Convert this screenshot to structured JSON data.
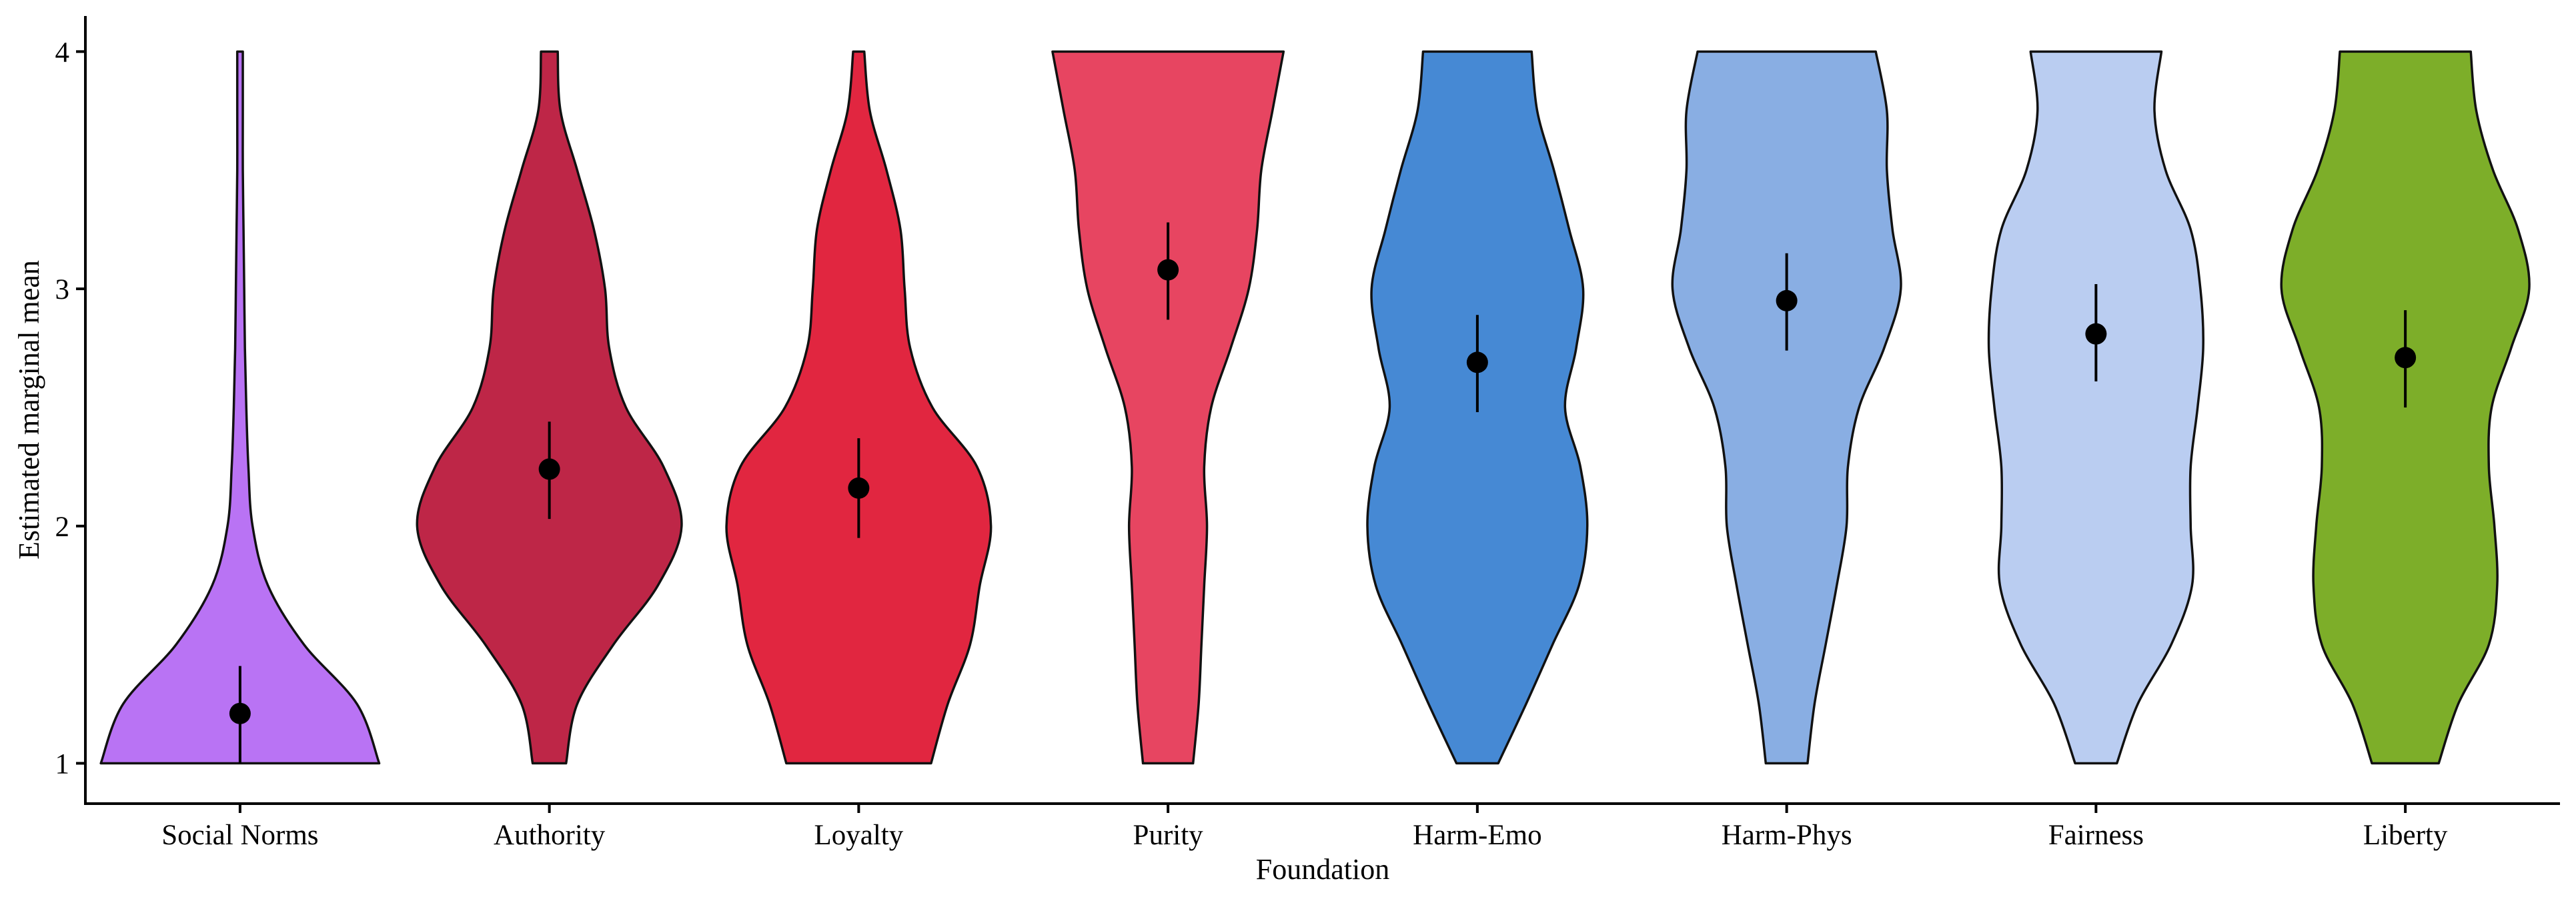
{
  "chart_data": {
    "type": "violin",
    "xlabel": "Foundation",
    "ylabel": "Estimated marginal mean",
    "ylim": [
      0.83,
      4.15
    ],
    "yticks": [
      1,
      2,
      3,
      4
    ],
    "grid": false,
    "legend": "none",
    "categories": [
      "Social Norms",
      "Authority",
      "Loyalty",
      "Purity",
      "Harm-Emo",
      "Harm-Phys",
      "Fairness",
      "Liberty"
    ],
    "colors": [
      "#b973f4",
      "#be2647",
      "#e12640",
      "#e74561",
      "#4689d4",
      "#89aee3",
      "#bacdf1",
      "#7dae29"
    ],
    "point_color": "#000000",
    "density_y": [
      1.0,
      1.25,
      1.5,
      1.75,
      2.0,
      2.25,
      2.5,
      2.75,
      3.0,
      3.25,
      3.5,
      3.75,
      4.0
    ],
    "series": [
      {
        "category": "Social Norms",
        "mean": 1.21,
        "ci": [
          1.0,
          1.41
        ],
        "density": [
          1.0,
          0.84,
          0.46,
          0.2,
          0.09,
          0.06,
          0.045,
          0.035,
          0.03,
          0.025,
          0.02,
          0.02,
          0.02
        ]
      },
      {
        "category": "Authority",
        "mean": 2.24,
        "ci": [
          2.03,
          2.44
        ],
        "density": [
          0.12,
          0.2,
          0.46,
          0.78,
          0.95,
          0.82,
          0.55,
          0.43,
          0.4,
          0.32,
          0.2,
          0.08,
          0.06
        ]
      },
      {
        "category": "Loyalty",
        "mean": 2.16,
        "ci": [
          1.95,
          2.37
        ],
        "density": [
          0.52,
          0.64,
          0.8,
          0.87,
          0.95,
          0.85,
          0.53,
          0.37,
          0.33,
          0.3,
          0.2,
          0.08,
          0.04
        ]
      },
      {
        "category": "Purity",
        "mean": 3.08,
        "ci": [
          2.87,
          3.28
        ],
        "density": [
          0.18,
          0.22,
          0.24,
          0.26,
          0.28,
          0.26,
          0.31,
          0.45,
          0.58,
          0.64,
          0.67,
          0.75,
          0.83
        ]
      },
      {
        "category": "Harm-Emo",
        "mean": 2.69,
        "ci": [
          2.48,
          2.89
        ],
        "density": [
          0.15,
          0.35,
          0.54,
          0.73,
          0.79,
          0.74,
          0.63,
          0.71,
          0.76,
          0.66,
          0.55,
          0.43,
          0.39
        ]
      },
      {
        "category": "Harm-Phys",
        "mean": 2.95,
        "ci": [
          2.74,
          3.15
        ],
        "density": [
          0.15,
          0.2,
          0.28,
          0.36,
          0.43,
          0.44,
          0.52,
          0.7,
          0.82,
          0.76,
          0.72,
          0.72,
          0.64
        ]
      },
      {
        "category": "Fairness",
        "mean": 2.81,
        "ci": [
          2.61,
          3.02
        ],
        "density": [
          0.15,
          0.3,
          0.54,
          0.69,
          0.68,
          0.68,
          0.73,
          0.77,
          0.75,
          0.68,
          0.5,
          0.42,
          0.47
        ]
      },
      {
        "category": "Liberty",
        "mean": 2.71,
        "ci": [
          2.5,
          2.91
        ],
        "density": [
          0.24,
          0.38,
          0.6,
          0.66,
          0.64,
          0.6,
          0.62,
          0.76,
          0.89,
          0.81,
          0.63,
          0.51,
          0.47
        ]
      }
    ]
  }
}
